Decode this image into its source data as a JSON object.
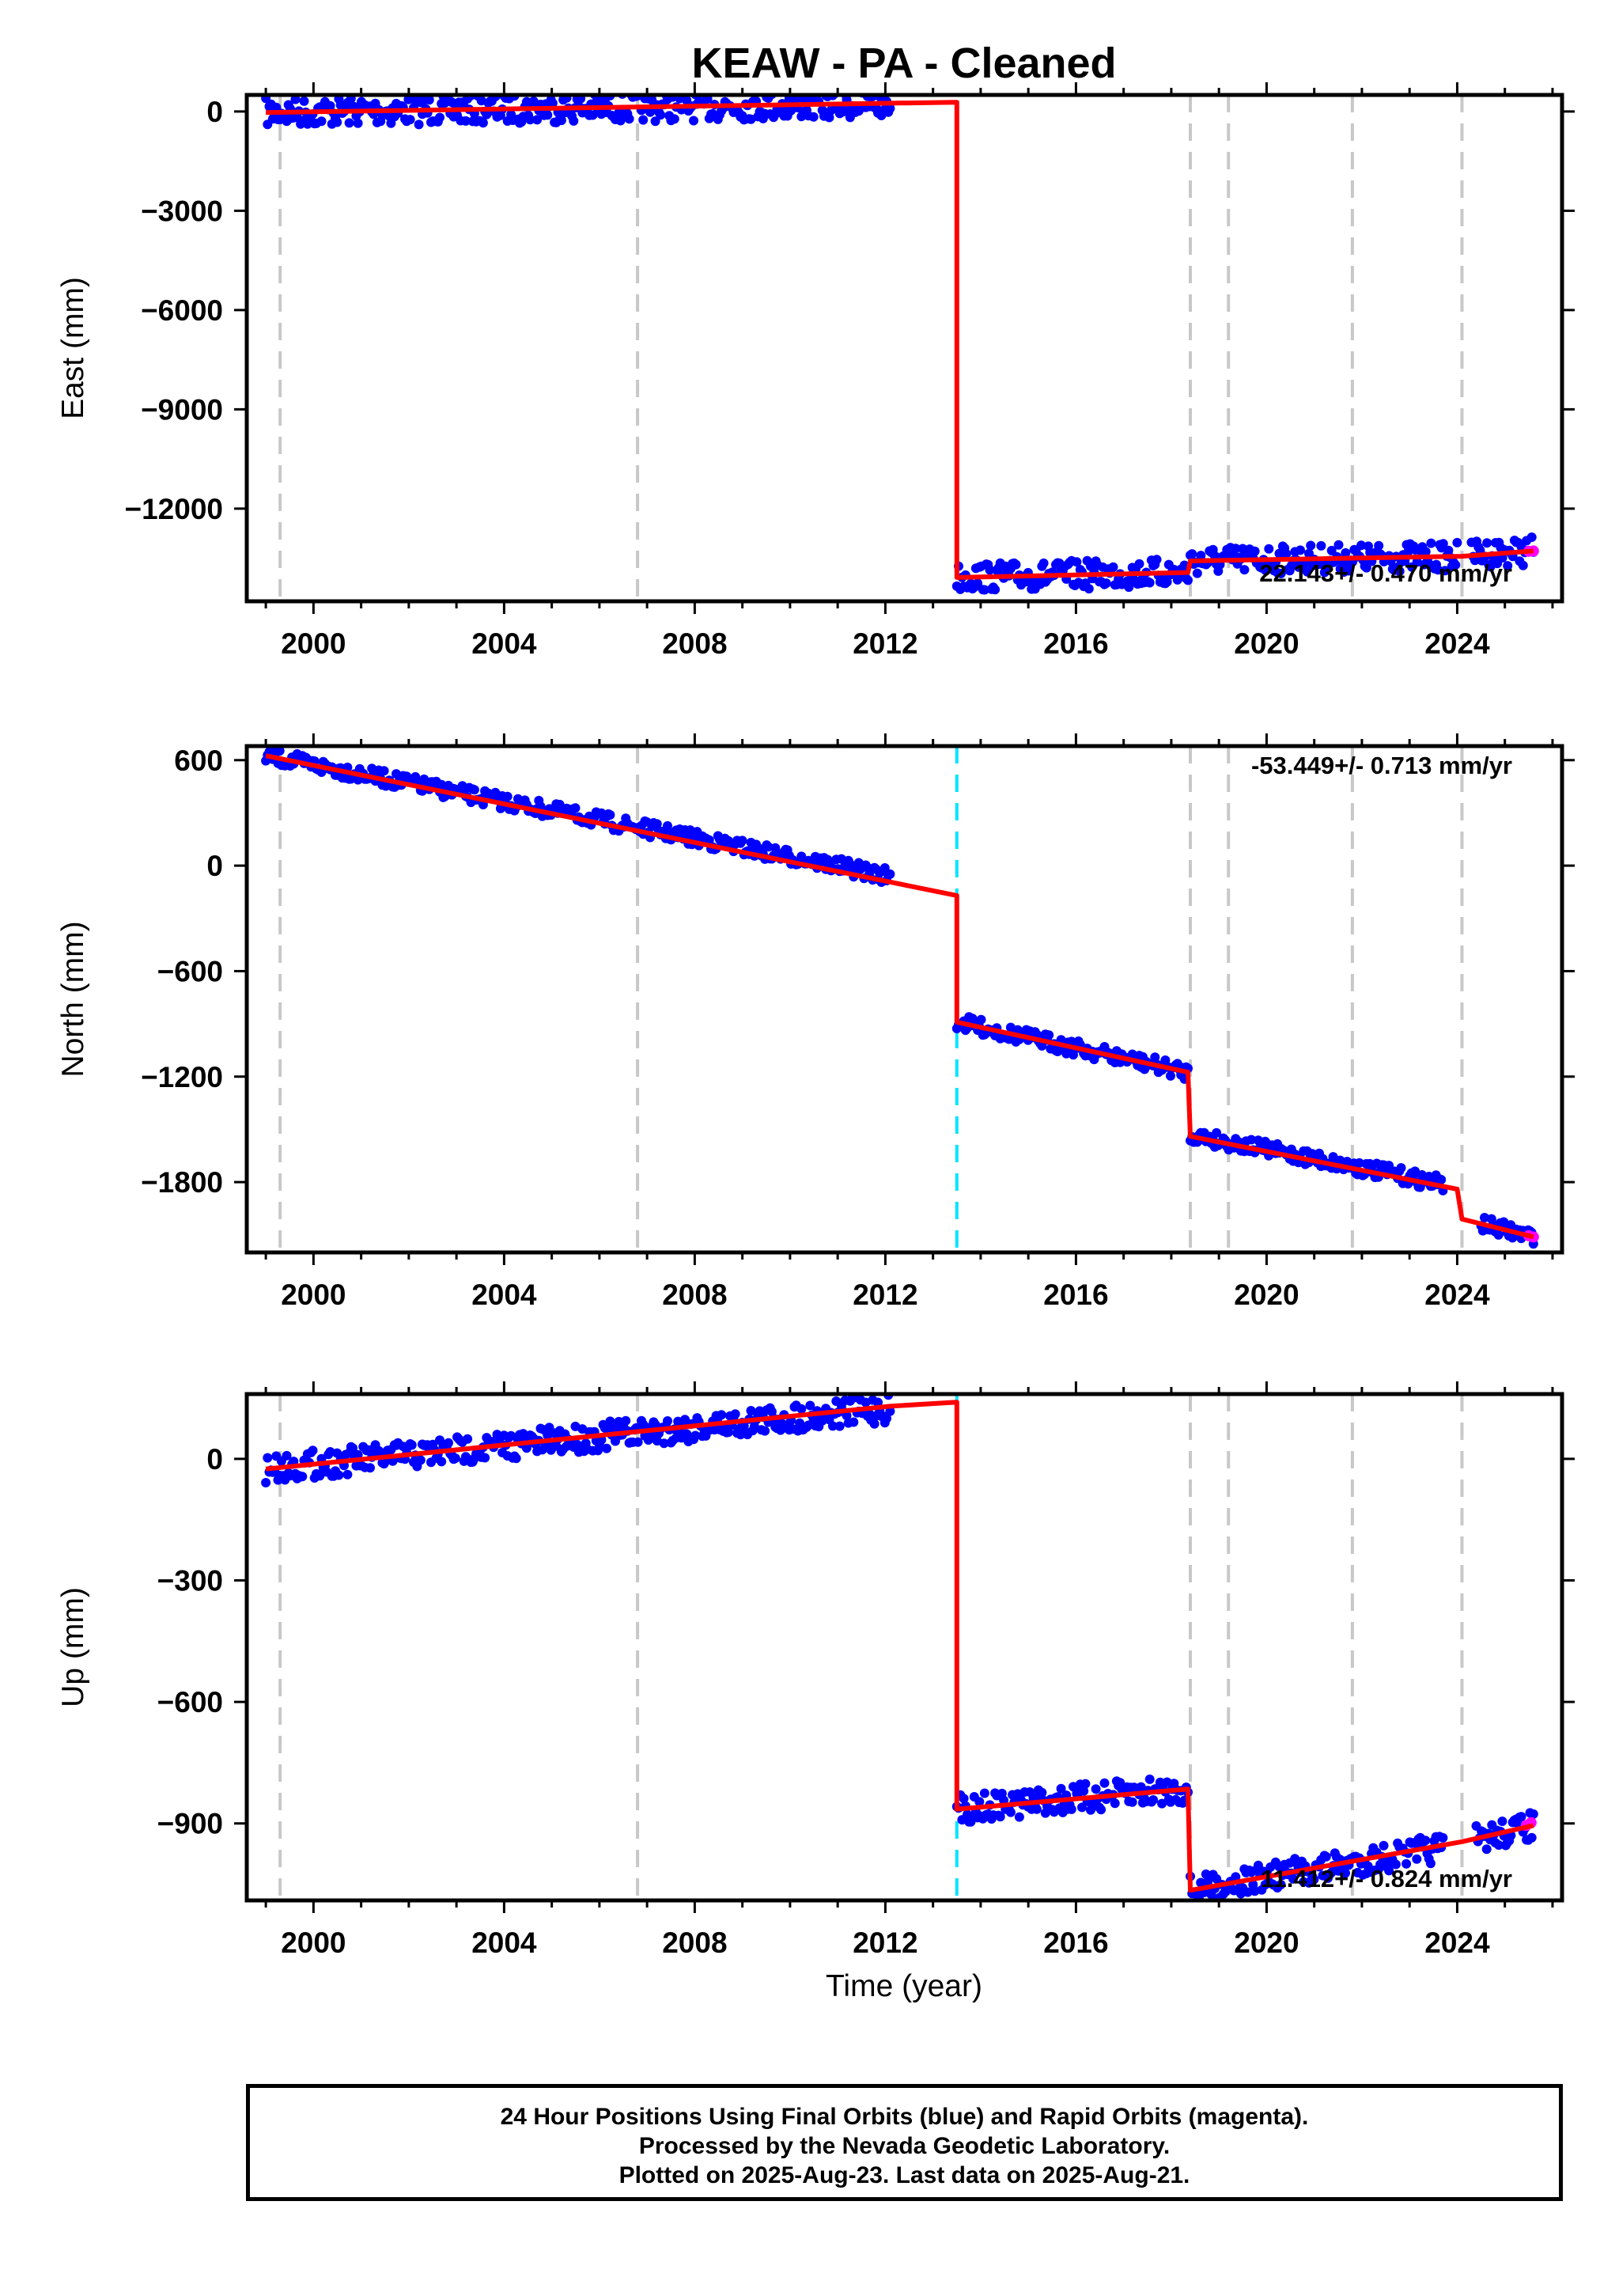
{
  "title": "KEAW  - PA - Cleaned",
  "x_axis_label": "Time (year)",
  "footer": {
    "line1": "24 Hour Positions Using Final Orbits (blue) and Rapid Orbits (magenta).",
    "line2": "Processed by the Nevada Geodetic Laboratory.",
    "line3": "Plotted on 2025-Aug-23. Last data on 2025-Aug-21."
  },
  "colors": {
    "final_orbits": "#0000ff",
    "rapid_orbits": "#ff00ff",
    "model": "#ff0000",
    "break_gray": "#c8c8c8",
    "break_cyan": "#00e5ff"
  },
  "chart_data": [
    {
      "type": "scatter",
      "panel": "east",
      "ylabel": "East (mm)",
      "xlim": [
        1998.6,
        2026.2
      ],
      "ylim": [
        -14800,
        500
      ],
      "yticks": [
        0,
        -3000,
        -6000,
        -9000,
        -12000
      ],
      "xticks": [
        2000,
        2004,
        2008,
        2012,
        2016,
        2020,
        2024
      ],
      "grid": false,
      "annotation": "22.143+/- 0.470 mm/yr",
      "breaks_gray": [
        1999.3,
        2006.8,
        2018.4,
        2019.2,
        2021.8,
        2024.1
      ],
      "breaks_cyan": [],
      "final_segments": [
        {
          "start": [
            1999.0,
            -30
          ],
          "end": [
            2012.1,
            230
          ]
        },
        {
          "start": [
            2013.5,
            -14080
          ],
          "end": [
            2018.35,
            -13930
          ]
        },
        {
          "start": [
            2018.4,
            -13580
          ],
          "end": [
            2024.0,
            -13450
          ]
        },
        {
          "start": [
            2024.3,
            -13350
          ],
          "end": [
            2025.6,
            -13280
          ]
        }
      ],
      "rapid_points": [
        [
          2025.5,
          -13290
        ],
        [
          2025.6,
          -13280
        ]
      ],
      "model_line": [
        [
          1999.0,
          -30
        ],
        [
          2013.5,
          280
        ],
        [
          2013.5,
          -14080
        ],
        [
          2018.35,
          -13930
        ],
        [
          2018.4,
          -13580
        ],
        [
          2024.1,
          -13440
        ],
        [
          2025.6,
          -13280
        ]
      ]
    },
    {
      "type": "scatter",
      "panel": "north",
      "ylabel": "North (mm)",
      "xlim": [
        1998.6,
        2026.2
      ],
      "ylim": [
        -2200,
        680
      ],
      "yticks": [
        600,
        0,
        -600,
        -1200,
        -1800
      ],
      "xticks": [
        2000,
        2004,
        2008,
        2012,
        2016,
        2020,
        2024
      ],
      "grid": false,
      "annotation": "-53.449+/- 0.713 mm/yr",
      "breaks_gray": [
        1999.3,
        2006.8,
        2018.4,
        2019.2,
        2021.8,
        2024.1
      ],
      "breaks_cyan": [
        2013.5
      ],
      "final_segments": [
        {
          "start": [
            1999.0,
            625
          ],
          "end": [
            2012.1,
            -60
          ]
        },
        {
          "start": [
            2013.5,
            -890
          ],
          "end": [
            2018.35,
            -1175
          ]
        },
        {
          "start": [
            2018.4,
            -1530
          ],
          "end": [
            2023.7,
            -1810
          ]
        },
        {
          "start": [
            2024.5,
            -2040
          ],
          "end": [
            2025.6,
            -2110
          ]
        }
      ],
      "rapid_points": [
        [
          2025.5,
          -2105
        ],
        [
          2025.6,
          -2112
        ]
      ],
      "model_line": [
        [
          1999.0,
          625
        ],
        [
          2013.5,
          -170
        ],
        [
          2013.5,
          -890
        ],
        [
          2018.35,
          -1175
        ],
        [
          2018.4,
          -1540
        ],
        [
          2024.0,
          -1840
        ],
        [
          2024.1,
          -2010
        ],
        [
          2025.6,
          -2112
        ]
      ]
    },
    {
      "type": "scatter",
      "panel": "up",
      "ylabel": "Up (mm)",
      "xlim": [
        1998.6,
        2026.2
      ],
      "ylim": [
        -1090,
        160
      ],
      "yticks": [
        0,
        -300,
        -600,
        -900
      ],
      "xticks": [
        2000,
        2004,
        2008,
        2012,
        2016,
        2020,
        2024
      ],
      "grid": false,
      "annotation": "11.412+/- 0.824 mm/yr",
      "breaks_gray": [
        1999.3,
        2006.8,
        2018.4,
        2019.2,
        2021.8,
        2024.1
      ],
      "breaks_cyan": [
        2013.5
      ],
      "final_segments": [
        {
          "start": [
            1999.0,
            -25
          ],
          "end": [
            2012.1,
            125
          ]
        },
        {
          "start": [
            2013.5,
            -865
          ],
          "end": [
            2018.35,
            -815
          ]
        },
        {
          "start": [
            2018.4,
            -1065
          ],
          "end": [
            2023.7,
            -960
          ]
        },
        {
          "start": [
            2024.4,
            -940
          ],
          "end": [
            2025.6,
            -905
          ]
        }
      ],
      "rapid_points": [
        [
          2025.45,
          -905
        ],
        [
          2025.55,
          -898
        ]
      ],
      "model_line": [
        [
          1999.0,
          -25
        ],
        [
          2012.1,
          130
        ],
        [
          2013.5,
          140
        ],
        [
          2013.5,
          -865
        ],
        [
          2018.35,
          -815
        ],
        [
          2018.4,
          -1065
        ],
        [
          2024.1,
          -945
        ],
        [
          2025.6,
          -905
        ]
      ]
    }
  ]
}
